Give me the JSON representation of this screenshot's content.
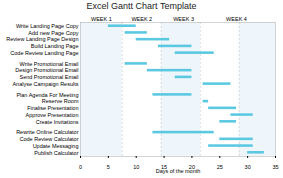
{
  "chart_data": {
    "type": "gantt",
    "title": "Excel Gantt Chart Template",
    "categories": [
      "Write Landing Page Copy",
      "Add new Page Copy",
      "Review Landing Page Design",
      "Build Landing Page",
      "Code Review Landing Page",
      "Write Promotional Email",
      "Design Promotional Email",
      "Send Promotional Email",
      "Analyse Campaign Results",
      "Plan Agenda For Meeting",
      "Reserve Room",
      "Finalise Presentation",
      "Approve Presentation",
      "Create Invitations",
      "Rewrite Online Calculator",
      "Code Review Calculator",
      "Update Messaging",
      "Publish Calculator"
    ],
    "start": [
      5,
      8,
      10,
      14,
      17,
      8,
      12,
      17,
      22,
      13,
      22,
      23,
      27,
      25,
      13,
      25,
      23,
      30
    ],
    "end": [
      10,
      12,
      16,
      20,
      24,
      12,
      20,
      20,
      27,
      20,
      23,
      28,
      31,
      28,
      24,
      31,
      31,
      33
    ],
    "groups": [
      0,
      0,
      0,
      0,
      0,
      1,
      1,
      1,
      1,
      2,
      2,
      2,
      2,
      2,
      3,
      3,
      3,
      3
    ],
    "xlabel": "Days of the month",
    "xlim": [
      0,
      35
    ],
    "xticks": [
      0,
      5,
      10,
      15,
      20,
      25,
      30,
      35
    ],
    "x2ticks": [
      {
        "value": 3.75,
        "label": "WEEK 1"
      },
      {
        "value": 11,
        "label": "WEEK 2"
      },
      {
        "value": 18.5,
        "label": "WEEK 3"
      },
      {
        "value": 28,
        "label": "WEEK 4"
      }
    ],
    "week_bounds": [
      7.5,
      14.5,
      21.5,
      28.5
    ],
    "color": "#5bc8e2"
  }
}
